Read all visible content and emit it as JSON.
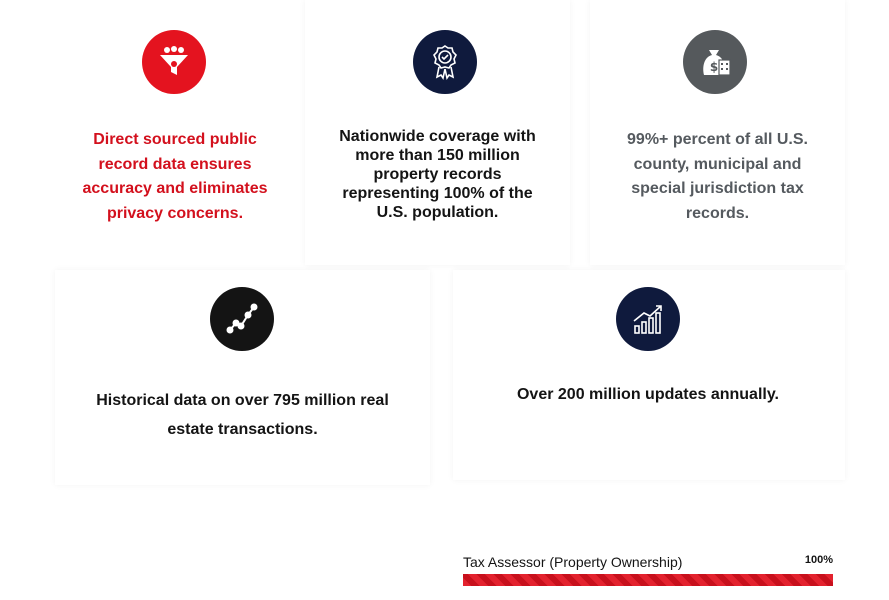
{
  "features": [
    {
      "icon": "funnel-icon",
      "color": "#e4131f",
      "text": "Direct sourced public record data ensures accuracy and eliminates privacy concerns."
    },
    {
      "icon": "award-ribbon-icon",
      "color": "#0f1a3d",
      "text": "Nationwide coverage with more than 150 million property records representing 100% of the U.S. population."
    },
    {
      "icon": "money-bag-building-icon",
      "color": "#55595c",
      "text": "99%+ percent of all U.S. county, municipal and special jurisdiction tax records."
    },
    {
      "icon": "line-trend-icon",
      "color": "#141414",
      "text": "Historical data on over 795 million real estate transactions."
    },
    {
      "icon": "bar-growth-icon",
      "color": "#0f1a3d",
      "text": "Over 200 million updates annually."
    }
  ],
  "progress": {
    "label": "Tax Assessor (Property Ownership)",
    "percent_label": "100%",
    "value": 100
  }
}
